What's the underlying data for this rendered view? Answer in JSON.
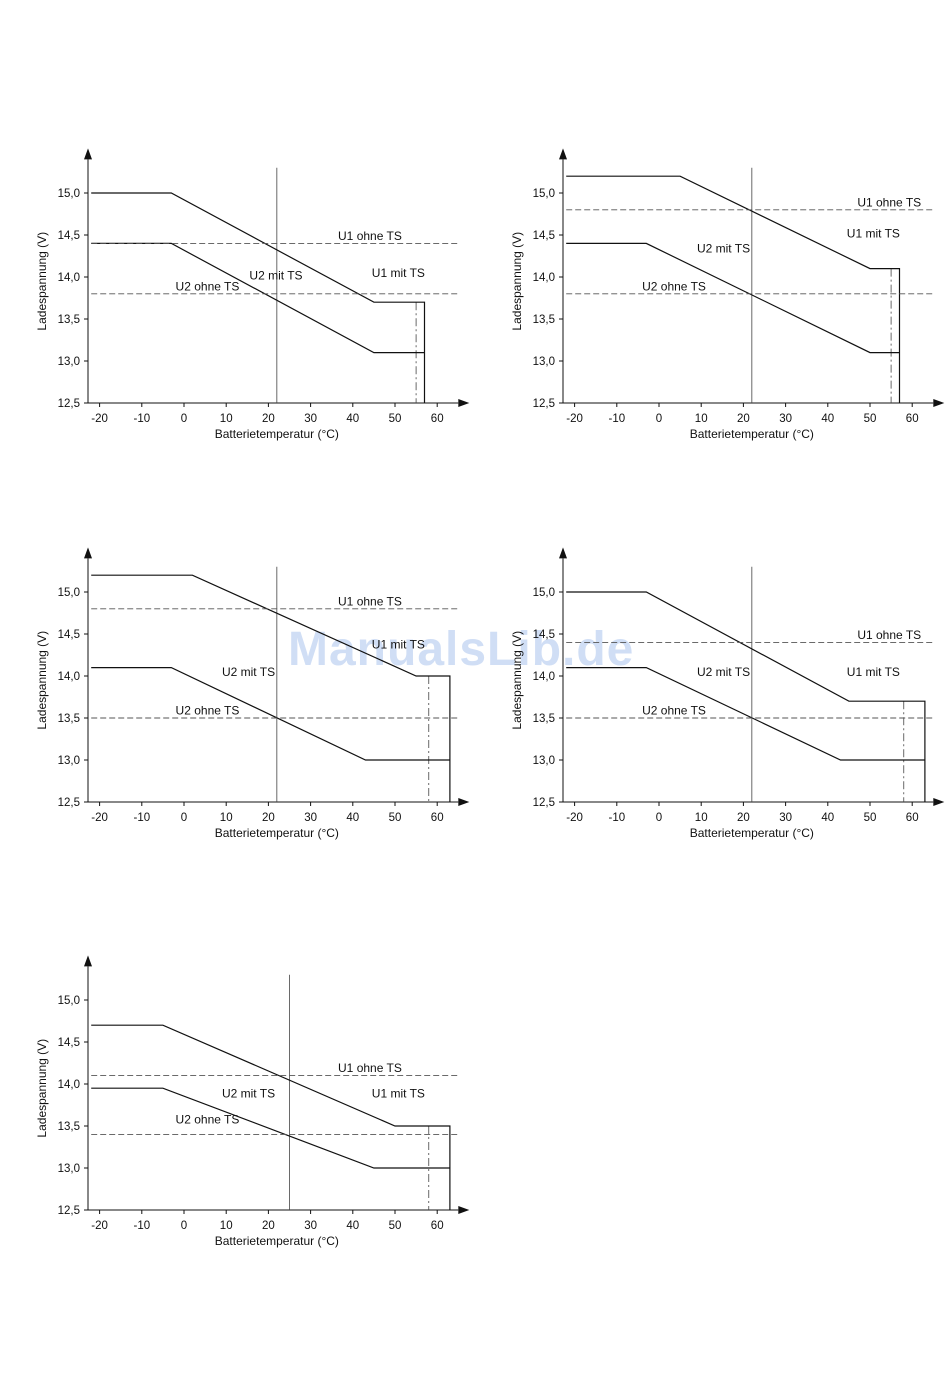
{
  "watermark": "ManualsLib.de",
  "chart_data": [
    {
      "type": "line",
      "xlabel": "Batterietemperatur (°C)",
      "ylabel": "Ladespannung (V)",
      "xlim": [
        -22,
        65
      ],
      "ylim": [
        12.5,
        15.5
      ],
      "xticks": [
        "-20",
        "-10",
        "0",
        "10",
        "20",
        "30",
        "40",
        "50",
        "60"
      ],
      "yticks": [
        "12,5",
        "13,0",
        "13,5",
        "14,0",
        "14,5",
        "15,0"
      ],
      "series": [
        {
          "name": "U1 mit TS",
          "style": "solid",
          "points": [
            [
              -22,
              15.0
            ],
            [
              -3,
              15.0
            ],
            [
              45,
              13.7
            ],
            [
              57,
              13.7
            ],
            [
              57,
              12.5
            ]
          ]
        },
        {
          "name": "U2 mit TS",
          "style": "solid",
          "points": [
            [
              -22,
              14.4
            ],
            [
              -3,
              14.4
            ],
            [
              45,
              13.1
            ],
            [
              57,
              13.1
            ]
          ]
        },
        {
          "name": "U1 ohne TS",
          "style": "dashed",
          "points": [
            [
              -22,
              14.4
            ],
            [
              65,
              14.4
            ]
          ]
        },
        {
          "name": "U2 ohne TS",
          "style": "dashed",
          "points": [
            [
              -22,
              13.8
            ],
            [
              65,
              13.8
            ]
          ]
        }
      ],
      "reference_vertical_x": 22,
      "cutoff_vertical_x": 55,
      "annotations": [
        "U1 ohne TS",
        "U1 mit TS",
        "U2 mit TS",
        "U2 ohne TS"
      ]
    },
    {
      "type": "line",
      "xlabel": "Batterietemperatur (°C)",
      "ylabel": "Ladespannung (V)",
      "xlim": [
        -22,
        65
      ],
      "ylim": [
        12.5,
        15.5
      ],
      "xticks": [
        "-20",
        "-10",
        "0",
        "10",
        "20",
        "30",
        "40",
        "50",
        "60"
      ],
      "yticks": [
        "12,5",
        "13,0",
        "13,5",
        "14,0",
        "14,5",
        "15,0"
      ],
      "series": [
        {
          "name": "U1 mit TS",
          "style": "solid",
          "points": [
            [
              -22,
              15.2
            ],
            [
              5,
              15.2
            ],
            [
              50,
              14.1
            ],
            [
              57,
              14.1
            ],
            [
              57,
              12.5
            ]
          ]
        },
        {
          "name": "U2 mit TS",
          "style": "solid",
          "points": [
            [
              -22,
              14.4
            ],
            [
              -3,
              14.4
            ],
            [
              50,
              13.1
            ],
            [
              57,
              13.1
            ]
          ]
        },
        {
          "name": "U1 ohne TS",
          "style": "dashed",
          "points": [
            [
              -22,
              14.8
            ],
            [
              65,
              14.8
            ]
          ]
        },
        {
          "name": "U2 ohne TS",
          "style": "dashed",
          "points": [
            [
              -22,
              13.8
            ],
            [
              65,
              13.8
            ]
          ]
        }
      ],
      "reference_vertical_x": 22,
      "cutoff_vertical_x": 55,
      "annotations": [
        "U1 ohne TS",
        "U1 mit TS",
        "U2 mit TS",
        "U2 ohne TS"
      ]
    },
    {
      "type": "line",
      "xlabel": "Batterietemperatur (°C)",
      "ylabel": "Ladespannung (V)",
      "xlim": [
        -22,
        65
      ],
      "ylim": [
        12.5,
        15.5
      ],
      "xticks": [
        "-20",
        "-10",
        "0",
        "10",
        "20",
        "30",
        "40",
        "50",
        "60"
      ],
      "yticks": [
        "12,5",
        "13,0",
        "13,5",
        "14,0",
        "14,5",
        "15,0"
      ],
      "series": [
        {
          "name": "U1 mit TS",
          "style": "solid",
          "points": [
            [
              -22,
              15.2
            ],
            [
              2,
              15.2
            ],
            [
              55,
              14.0
            ],
            [
              63,
              14.0
            ],
            [
              63,
              12.5
            ]
          ]
        },
        {
          "name": "U2 mit TS",
          "style": "solid",
          "points": [
            [
              -22,
              14.1
            ],
            [
              -3,
              14.1
            ],
            [
              43,
              13.0
            ],
            [
              63,
              13.0
            ]
          ]
        },
        {
          "name": "U1 ohne TS",
          "style": "dashed",
          "points": [
            [
              -22,
              14.8
            ],
            [
              65,
              14.8
            ]
          ]
        },
        {
          "name": "U2 ohne TS",
          "style": "dashed",
          "points": [
            [
              -22,
              13.5
            ],
            [
              65,
              13.5
            ]
          ]
        }
      ],
      "reference_vertical_x": 22,
      "cutoff_vertical_x": 58,
      "annotations": [
        "U1 ohne TS",
        "U1 mit TS",
        "U2 mit TS",
        "U2 ohne TS"
      ]
    },
    {
      "type": "line",
      "xlabel": "Batterietemperatur (°C)",
      "ylabel": "Ladespannung (V)",
      "xlim": [
        -22,
        65
      ],
      "ylim": [
        12.5,
        15.5
      ],
      "xticks": [
        "-20",
        "-10",
        "0",
        "10",
        "20",
        "30",
        "40",
        "50",
        "60"
      ],
      "yticks": [
        "12,5",
        "13,0",
        "13,5",
        "14,0",
        "14,5",
        "15,0"
      ],
      "series": [
        {
          "name": "U1 mit TS",
          "style": "solid",
          "points": [
            [
              -22,
              15.0
            ],
            [
              -3,
              15.0
            ],
            [
              45,
              13.7
            ],
            [
              63,
              13.7
            ],
            [
              63,
              12.5
            ]
          ]
        },
        {
          "name": "U2 mit TS",
          "style": "solid",
          "points": [
            [
              -22,
              14.1
            ],
            [
              -3,
              14.1
            ],
            [
              43,
              13.0
            ],
            [
              63,
              13.0
            ]
          ]
        },
        {
          "name": "U1 ohne TS",
          "style": "dashed",
          "points": [
            [
              -22,
              14.4
            ],
            [
              65,
              14.4
            ]
          ]
        },
        {
          "name": "U2 ohne TS",
          "style": "dashed",
          "points": [
            [
              -22,
              13.5
            ],
            [
              65,
              13.5
            ]
          ]
        }
      ],
      "reference_vertical_x": 22,
      "cutoff_vertical_x": 58,
      "annotations": [
        "U1 ohne TS",
        "U1 mit TS",
        "U2 mit TS",
        "U2 ohne TS"
      ]
    },
    {
      "type": "line",
      "xlabel": "Batterietemperatur (°C)",
      "ylabel": "Ladespannung (V)",
      "xlim": [
        -22,
        65
      ],
      "ylim": [
        12.5,
        15.5
      ],
      "xticks": [
        "-20",
        "-10",
        "0",
        "10",
        "20",
        "30",
        "40",
        "50",
        "60"
      ],
      "yticks": [
        "12,5",
        "13,0",
        "13,5",
        "14,0",
        "14,5",
        "15,0"
      ],
      "series": [
        {
          "name": "U1 mit TS",
          "style": "solid",
          "points": [
            [
              -22,
              14.7
            ],
            [
              -5,
              14.7
            ],
            [
              50,
              13.5
            ],
            [
              63,
              13.5
            ],
            [
              63,
              12.5
            ]
          ]
        },
        {
          "name": "U2 mit TS",
          "style": "solid",
          "points": [
            [
              -22,
              13.95
            ],
            [
              -5,
              13.95
            ],
            [
              45,
              13.0
            ],
            [
              63,
              13.0
            ]
          ]
        },
        {
          "name": "U1 ohne TS",
          "style": "dashed",
          "points": [
            [
              -22,
              14.1
            ],
            [
              65,
              14.1
            ]
          ]
        },
        {
          "name": "U2 ohne TS",
          "style": "dashed",
          "points": [
            [
              -22,
              13.4
            ],
            [
              65,
              13.4
            ]
          ]
        }
      ],
      "reference_vertical_x": 25,
      "cutoff_vertical_x": 58,
      "annotations": [
        "U1 ohne TS",
        "U1 mit TS",
        "U2 mit TS",
        "U2 ohne TS"
      ]
    }
  ]
}
